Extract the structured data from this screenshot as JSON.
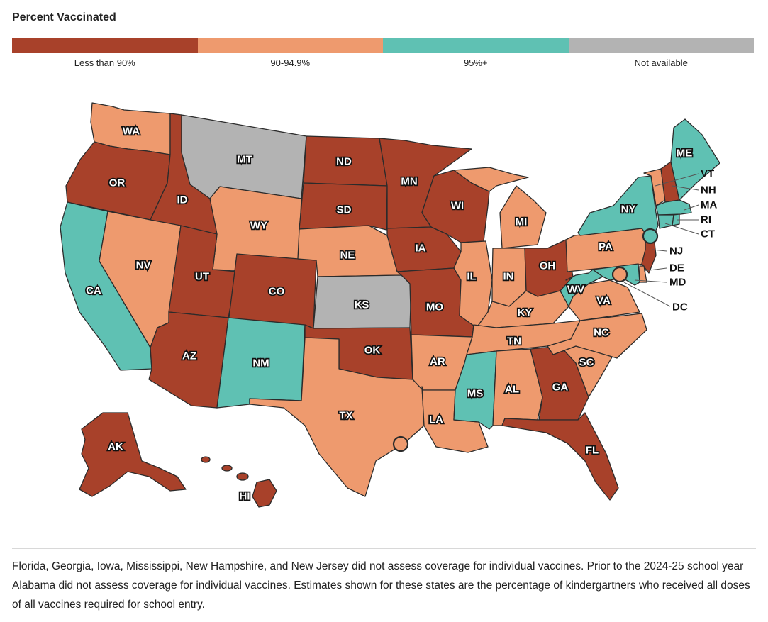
{
  "legend": {
    "title": "Percent Vaccinated",
    "items": [
      {
        "key": "low",
        "label": "Less than 90%",
        "color": "#a8412a"
      },
      {
        "key": "mid",
        "label": "90-94.9%",
        "color": "#ee9a6e"
      },
      {
        "key": "high",
        "label": "95%+",
        "color": "#5fc1b3"
      },
      {
        "key": "na",
        "label": "Not available",
        "color": "#b3b3b3"
      }
    ]
  },
  "states": [
    {
      "abbr": "WA",
      "category": "mid"
    },
    {
      "abbr": "OR",
      "category": "low"
    },
    {
      "abbr": "CA",
      "category": "high"
    },
    {
      "abbr": "ID",
      "category": "low"
    },
    {
      "abbr": "NV",
      "category": "mid"
    },
    {
      "abbr": "MT",
      "category": "na"
    },
    {
      "abbr": "WY",
      "category": "mid"
    },
    {
      "abbr": "UT",
      "category": "low"
    },
    {
      "abbr": "AZ",
      "category": "low"
    },
    {
      "abbr": "CO",
      "category": "low"
    },
    {
      "abbr": "NM",
      "category": "high"
    },
    {
      "abbr": "ND",
      "category": "low"
    },
    {
      "abbr": "SD",
      "category": "low"
    },
    {
      "abbr": "NE",
      "category": "mid"
    },
    {
      "abbr": "KS",
      "category": "na"
    },
    {
      "abbr": "OK",
      "category": "low"
    },
    {
      "abbr": "TX",
      "category": "mid"
    },
    {
      "abbr": "MN",
      "category": "low"
    },
    {
      "abbr": "IA",
      "category": "low"
    },
    {
      "abbr": "MO",
      "category": "low"
    },
    {
      "abbr": "AR",
      "category": "mid"
    },
    {
      "abbr": "LA",
      "category": "mid"
    },
    {
      "abbr": "WI",
      "category": "low"
    },
    {
      "abbr": "IL",
      "category": "mid"
    },
    {
      "abbr": "MI",
      "category": "mid"
    },
    {
      "abbr": "IN",
      "category": "mid"
    },
    {
      "abbr": "OH",
      "category": "low"
    },
    {
      "abbr": "KY",
      "category": "mid"
    },
    {
      "abbr": "TN",
      "category": "mid"
    },
    {
      "abbr": "MS",
      "category": "high"
    },
    {
      "abbr": "AL",
      "category": "mid"
    },
    {
      "abbr": "GA",
      "category": "low"
    },
    {
      "abbr": "FL",
      "category": "low"
    },
    {
      "abbr": "SC",
      "category": "mid"
    },
    {
      "abbr": "NC",
      "category": "mid"
    },
    {
      "abbr": "VA",
      "category": "mid"
    },
    {
      "abbr": "WV",
      "category": "high"
    },
    {
      "abbr": "PA",
      "category": "mid"
    },
    {
      "abbr": "NY",
      "category": "high"
    },
    {
      "abbr": "VT",
      "category": "mid"
    },
    {
      "abbr": "NH",
      "category": "low"
    },
    {
      "abbr": "ME",
      "category": "high"
    },
    {
      "abbr": "MA",
      "category": "high"
    },
    {
      "abbr": "RI",
      "category": "high"
    },
    {
      "abbr": "CT",
      "category": "high"
    },
    {
      "abbr": "NJ",
      "category": "low"
    },
    {
      "abbr": "DE",
      "category": "mid"
    },
    {
      "abbr": "MD",
      "category": "high"
    },
    {
      "abbr": "DC",
      "category": "mid"
    },
    {
      "abbr": "AK",
      "category": "low"
    },
    {
      "abbr": "HI",
      "category": "low"
    }
  ],
  "cities": [
    {
      "name": "NYC",
      "category": "high"
    },
    {
      "name": "DC-area",
      "category": "mid"
    },
    {
      "name": "Houston",
      "category": "mid"
    }
  ],
  "footnote": "Florida, Georgia, Iowa, Mississippi, New Hampshire, and New Jersey did not assess coverage for individual vaccines. Prior to the 2024-25 school year Alabama did not assess coverage for individual vaccines. Estimates shown for these states are the percentage of kindergartners who received all doses of all vaccines required for school entry."
}
